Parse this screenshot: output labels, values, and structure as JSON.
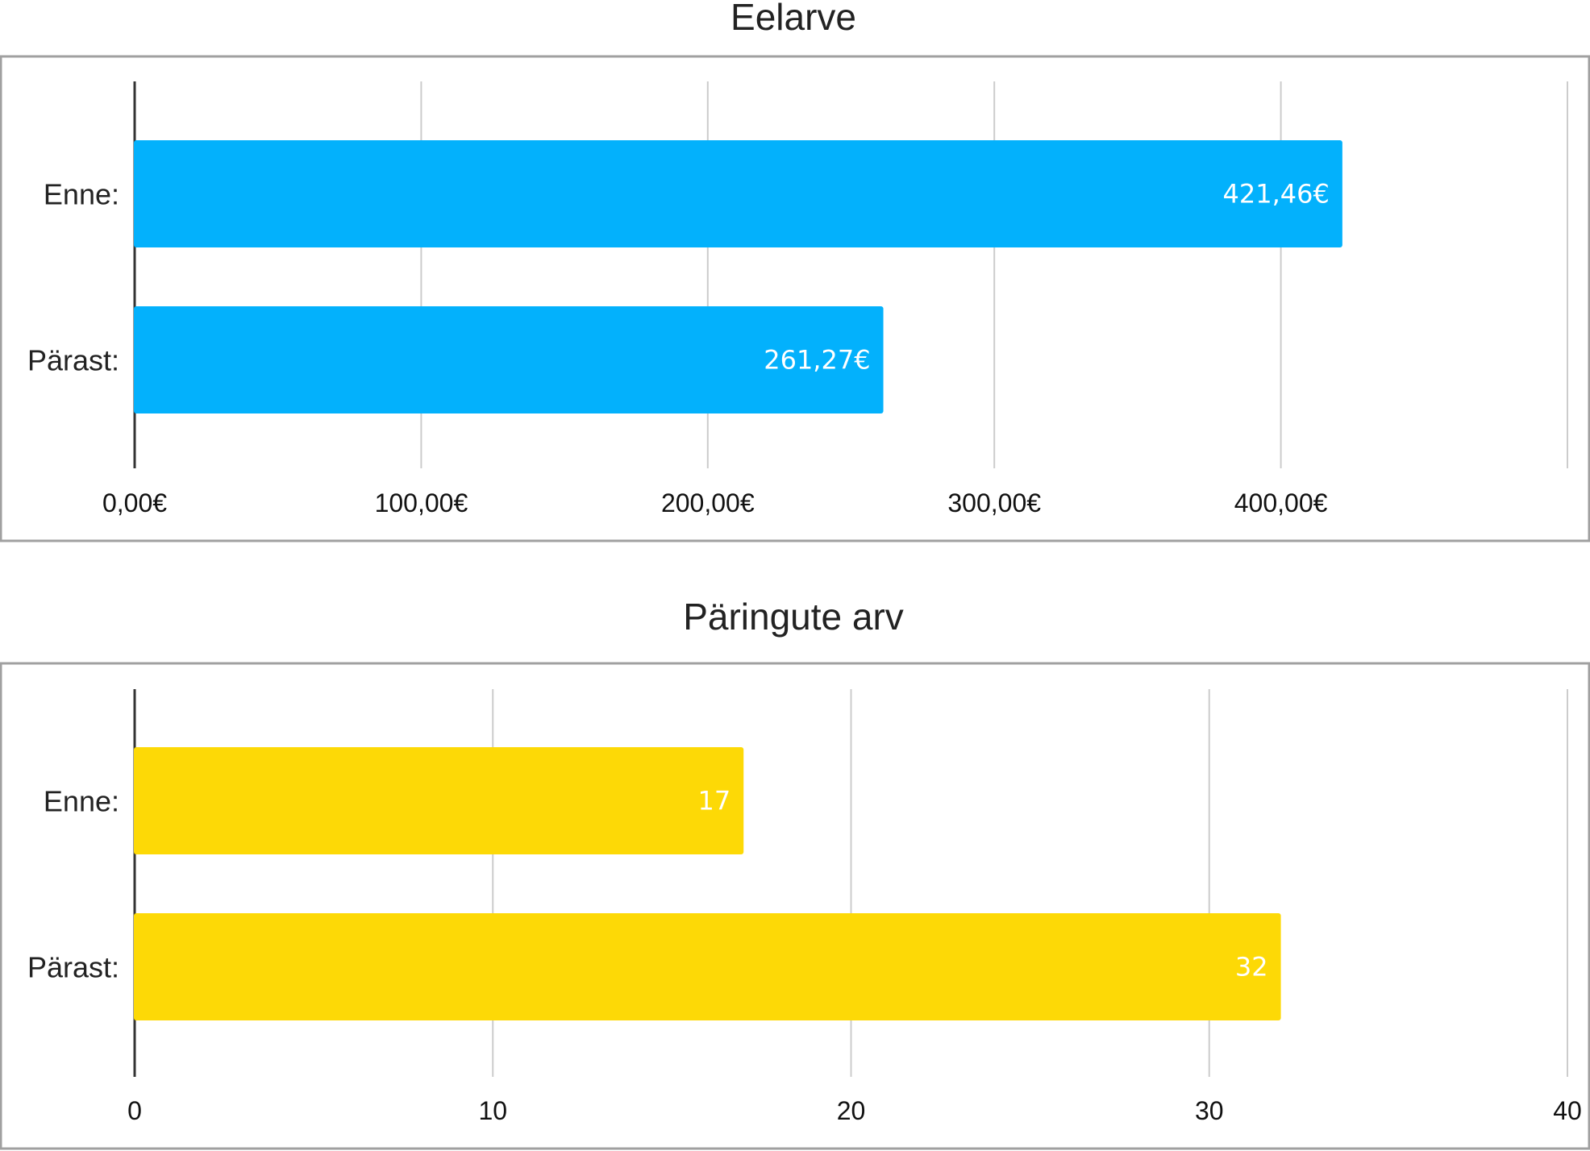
{
  "chart_data": [
    {
      "type": "bar",
      "orientation": "horizontal",
      "title": "Eelarve",
      "categories": [
        "Enne:",
        "Pärast:"
      ],
      "values": [
        421.46,
        261.27
      ],
      "data_labels": [
        "421,46€",
        "261,27€"
      ],
      "xlim": [
        0,
        500
      ],
      "xticks": [
        0,
        100,
        200,
        300,
        400
      ],
      "xtick_labels": [
        "0,00€",
        "100,00€",
        "200,00€",
        "300,00€",
        "400,00€"
      ],
      "grid": true,
      "color": "#03B1FC"
    },
    {
      "type": "bar",
      "orientation": "horizontal",
      "title": "Päringute arv",
      "categories": [
        "Enne:",
        "Pärast:"
      ],
      "values": [
        17,
        32
      ],
      "data_labels": [
        "17",
        "32"
      ],
      "xlim": [
        0,
        40
      ],
      "xticks": [
        0,
        10,
        20,
        30,
        40
      ],
      "xtick_labels": [
        "0",
        "10",
        "20",
        "30",
        "40"
      ],
      "grid": true,
      "color": "#FDD906"
    }
  ]
}
